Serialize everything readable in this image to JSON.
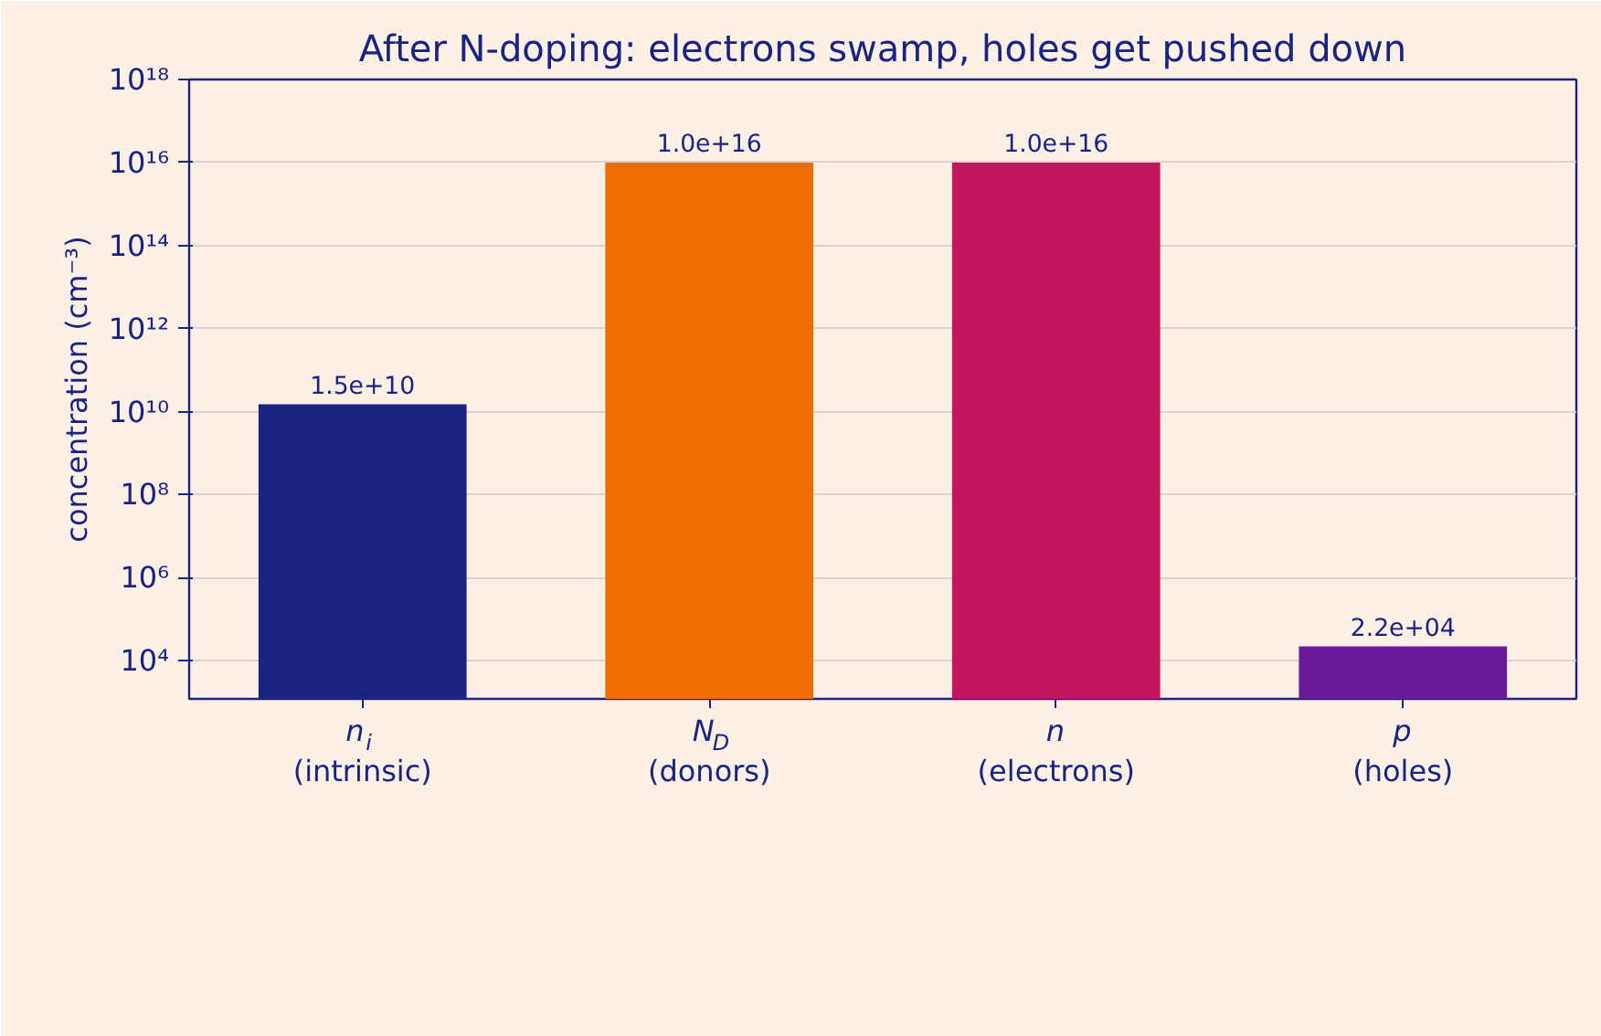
{
  "chart_data": {
    "type": "bar",
    "title": "After N-doping: electrons swamp, holes get pushed down",
    "ylabel": "concentration (cm⁻³)",
    "categories": [
      "n$_{i}$\n(intrinsic)",
      "N$_{D}$\n(donors)",
      "n\n(electrons)",
      "p\n(holes)"
    ],
    "values": [
      15000000000.0,
      1e+16,
      1e+16,
      22000.0
    ],
    "colors": [
      "#1a237e",
      "#ef6c00",
      "#c2185b",
      "#6a1b9a"
    ],
    "value_labels": [
      "1.5e+10",
      "1.0e+16",
      "1.0e+16",
      "2.2e+04"
    ],
    "log": true,
    "ylim": [
      1200,
      1e+18
    ],
    "yticks": [
      {
        "value": 10000.0,
        "label": "10⁴"
      },
      {
        "value": 1000000.0,
        "label": "10⁶"
      },
      {
        "value": 100000000.0,
        "label": "10⁸"
      },
      {
        "value": 10000000000.0,
        "label": "10¹⁰"
      },
      {
        "value": 1000000000000.0,
        "label": "10¹²"
      },
      {
        "value": 100000000000000.0,
        "label": "10¹⁴"
      },
      {
        "value": 1e+16,
        "label": "10¹⁶"
      },
      {
        "value": 1e+18,
        "label": "10¹⁸"
      }
    ],
    "grid": "y"
  }
}
